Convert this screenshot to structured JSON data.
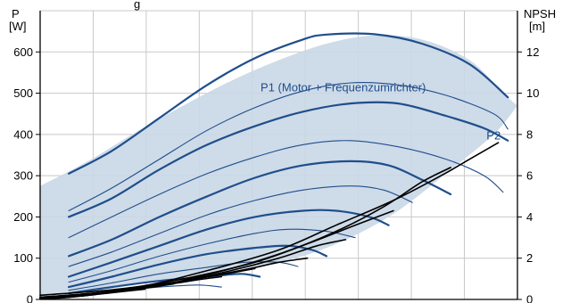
{
  "chart_data": {
    "type": "line",
    "title": "",
    "top_text": "g",
    "left_axis": {
      "label_line1": "P",
      "label_line2": "[W]",
      "ylim": [
        0,
        700
      ],
      "ticks": [
        {
          "v": 0,
          "t": "0"
        },
        {
          "v": 100,
          "t": "100"
        },
        {
          "v": 200,
          "t": "200"
        },
        {
          "v": 300,
          "t": "300"
        },
        {
          "v": 400,
          "t": "400"
        },
        {
          "v": 500,
          "t": "500"
        },
        {
          "v": 600,
          "t": "600"
        }
      ]
    },
    "right_axis": {
      "label_line1": "NPSH",
      "label_line2": "[m]",
      "ylim": [
        0,
        14
      ],
      "ticks": [
        {
          "v": 0,
          "t": "0"
        },
        {
          "v": 2,
          "t": "2"
        },
        {
          "v": 4,
          "t": "4"
        },
        {
          "v": 6,
          "t": "6"
        },
        {
          "v": 8,
          "t": "8"
        },
        {
          "v": 10,
          "t": "10"
        },
        {
          "v": 12,
          "t": "12"
        }
      ]
    },
    "x_grid_count": 9,
    "grid": true,
    "colors": {
      "band": "#c9d7e6",
      "power": "#1f4e8c",
      "npsh": "#000000",
      "grid": "#c8c8c8",
      "label": "#1f4e8c"
    },
    "annotations": [
      {
        "text": "P1 (Motor + Frequenzumrichter)",
        "x": 0.635,
        "y": 505
      },
      {
        "text": "P2",
        "x": 0.95,
        "y": 388
      }
    ],
    "band_upper": [
      [
        0,
        275
      ],
      [
        0.1,
        335
      ],
      [
        0.2,
        405
      ],
      [
        0.3,
        470
      ],
      [
        0.4,
        530
      ],
      [
        0.5,
        580
      ],
      [
        0.6,
        620
      ],
      [
        0.7,
        640
      ],
      [
        0.8,
        630
      ],
      [
        0.9,
        580
      ],
      [
        0.97,
        500
      ],
      [
        1.0,
        470
      ]
    ],
    "band_lower": [
      [
        1.0,
        470
      ],
      [
        0.95,
        400
      ],
      [
        0.85,
        305
      ],
      [
        0.75,
        215
      ],
      [
        0.65,
        150
      ],
      [
        0.55,
        105
      ],
      [
        0.45,
        80
      ],
      [
        0.35,
        62
      ],
      [
        0.25,
        45
      ],
      [
        0.15,
        30
      ],
      [
        0.08,
        18
      ],
      [
        0.04,
        0
      ],
      [
        0,
        0
      ]
    ],
    "series": [
      {
        "role": "power-max",
        "points": [
          [
            0.06,
            305
          ],
          [
            0.15,
            360
          ],
          [
            0.25,
            440
          ],
          [
            0.35,
            520
          ],
          [
            0.45,
            585
          ],
          [
            0.55,
            630
          ],
          [
            0.6,
            642
          ],
          [
            0.7,
            643
          ],
          [
            0.8,
            620
          ],
          [
            0.9,
            570
          ],
          [
            0.98,
            490
          ]
        ]
      },
      {
        "role": "power-thin",
        "points": [
          [
            0.06,
            215
          ],
          [
            0.15,
            270
          ],
          [
            0.25,
            340
          ],
          [
            0.35,
            410
          ],
          [
            0.45,
            465
          ],
          [
            0.55,
            505
          ],
          [
            0.65,
            525
          ],
          [
            0.75,
            520
          ],
          [
            0.85,
            495
          ],
          [
            0.95,
            450
          ],
          [
            0.98,
            413
          ]
        ]
      },
      {
        "role": "power-thick",
        "points": [
          [
            0.06,
            200
          ],
          [
            0.15,
            245
          ],
          [
            0.25,
            315
          ],
          [
            0.35,
            375
          ],
          [
            0.45,
            420
          ],
          [
            0.55,
            455
          ],
          [
            0.65,
            475
          ],
          [
            0.75,
            475
          ],
          [
            0.85,
            445
          ],
          [
            0.93,
            415
          ],
          [
            0.98,
            385
          ]
        ]
      },
      {
        "role": "power-thin",
        "points": [
          [
            0.06,
            150
          ],
          [
            0.15,
            200
          ],
          [
            0.25,
            255
          ],
          [
            0.35,
            305
          ],
          [
            0.45,
            345
          ],
          [
            0.55,
            375
          ],
          [
            0.65,
            385
          ],
          [
            0.75,
            370
          ],
          [
            0.85,
            340
          ],
          [
            0.93,
            300
          ],
          [
            0.97,
            260
          ]
        ]
      },
      {
        "role": "power-thick",
        "points": [
          [
            0.06,
            105
          ],
          [
            0.15,
            145
          ],
          [
            0.25,
            200
          ],
          [
            0.35,
            250
          ],
          [
            0.45,
            295
          ],
          [
            0.55,
            325
          ],
          [
            0.65,
            335
          ],
          [
            0.73,
            325
          ],
          [
            0.8,
            290
          ],
          [
            0.86,
            255
          ]
        ]
      },
      {
        "role": "power-thin",
        "points": [
          [
            0.06,
            80
          ],
          [
            0.15,
            115
          ],
          [
            0.25,
            160
          ],
          [
            0.35,
            205
          ],
          [
            0.45,
            240
          ],
          [
            0.55,
            265
          ],
          [
            0.65,
            275
          ],
          [
            0.72,
            265
          ],
          [
            0.78,
            235
          ]
        ]
      },
      {
        "role": "power-thick",
        "points": [
          [
            0.06,
            55
          ],
          [
            0.15,
            90
          ],
          [
            0.25,
            130
          ],
          [
            0.35,
            170
          ],
          [
            0.45,
            200
          ],
          [
            0.55,
            215
          ],
          [
            0.62,
            215
          ],
          [
            0.69,
            200
          ],
          [
            0.73,
            180
          ]
        ]
      },
      {
        "role": "power-thin",
        "points": [
          [
            0.06,
            42
          ],
          [
            0.15,
            70
          ],
          [
            0.25,
            105
          ],
          [
            0.35,
            135
          ],
          [
            0.45,
            160
          ],
          [
            0.52,
            170
          ],
          [
            0.6,
            165
          ],
          [
            0.66,
            150
          ]
        ]
      },
      {
        "role": "power-thick",
        "points": [
          [
            0.06,
            30
          ],
          [
            0.15,
            55
          ],
          [
            0.25,
            85
          ],
          [
            0.35,
            110
          ],
          [
            0.45,
            125
          ],
          [
            0.52,
            130
          ],
          [
            0.57,
            120
          ],
          [
            0.6,
            105
          ]
        ]
      },
      {
        "role": "power-thin",
        "points": [
          [
            0.06,
            22
          ],
          [
            0.15,
            40
          ],
          [
            0.25,
            62
          ],
          [
            0.35,
            78
          ],
          [
            0.43,
            90
          ],
          [
            0.5,
            90
          ],
          [
            0.54,
            80
          ]
        ]
      },
      {
        "role": "power-thick",
        "points": [
          [
            0.06,
            15
          ],
          [
            0.15,
            30
          ],
          [
            0.25,
            45
          ],
          [
            0.35,
            55
          ],
          [
            0.42,
            62
          ],
          [
            0.46,
            55
          ]
        ]
      },
      {
        "role": "power-thin",
        "points": [
          [
            0.06,
            10
          ],
          [
            0.15,
            20
          ],
          [
            0.25,
            30
          ],
          [
            0.33,
            35
          ],
          [
            0.38,
            30
          ]
        ]
      },
      {
        "role": "npsh",
        "points": [
          [
            0.0,
            0.2
          ],
          [
            0.2,
            0.6
          ],
          [
            0.35,
            1.4
          ],
          [
            0.5,
            2.4
          ],
          [
            0.62,
            3.6
          ],
          [
            0.74,
            4.8
          ],
          [
            0.84,
            6.0
          ],
          [
            0.9,
            6.8
          ],
          [
            0.96,
            7.6
          ]
        ]
      },
      {
        "role": "npsh",
        "points": [
          [
            0.0,
            0.1
          ],
          [
            0.2,
            0.5
          ],
          [
            0.35,
            1.2
          ],
          [
            0.5,
            2.2
          ],
          [
            0.62,
            3.3
          ],
          [
            0.72,
            4.5
          ],
          [
            0.8,
            5.7
          ],
          [
            0.86,
            6.4
          ]
        ]
      },
      {
        "role": "npsh",
        "points": [
          [
            0.0,
            0.1
          ],
          [
            0.15,
            0.4
          ],
          [
            0.3,
            1.0
          ],
          [
            0.45,
            1.8
          ],
          [
            0.56,
            2.7
          ],
          [
            0.66,
            3.6
          ],
          [
            0.74,
            4.3
          ]
        ]
      },
      {
        "role": "npsh",
        "points": [
          [
            0.0,
            0.1
          ],
          [
            0.15,
            0.35
          ],
          [
            0.28,
            0.8
          ],
          [
            0.4,
            1.4
          ],
          [
            0.5,
            2.0
          ],
          [
            0.58,
            2.6
          ],
          [
            0.64,
            2.9
          ]
        ]
      },
      {
        "role": "npsh",
        "points": [
          [
            0.0,
            0.05
          ],
          [
            0.12,
            0.3
          ],
          [
            0.25,
            0.7
          ],
          [
            0.35,
            1.1
          ],
          [
            0.44,
            1.5
          ],
          [
            0.5,
            1.8
          ],
          [
            0.56,
            2.0
          ]
        ]
      },
      {
        "role": "npsh",
        "points": [
          [
            0.0,
            0.05
          ],
          [
            0.1,
            0.25
          ],
          [
            0.2,
            0.55
          ],
          [
            0.3,
            0.9
          ],
          [
            0.38,
            1.2
          ],
          [
            0.45,
            1.5
          ]
        ]
      },
      {
        "role": "npsh",
        "points": [
          [
            0.0,
            0.05
          ],
          [
            0.1,
            0.2
          ],
          [
            0.18,
            0.45
          ],
          [
            0.26,
            0.7
          ],
          [
            0.33,
            0.95
          ],
          [
            0.38,
            1.1
          ]
        ]
      },
      {
        "role": "npsh",
        "points": [
          [
            0.0,
            0.02
          ],
          [
            0.08,
            0.15
          ],
          [
            0.15,
            0.35
          ],
          [
            0.22,
            0.55
          ],
          [
            0.28,
            0.75
          ]
        ]
      },
      {
        "role": "npsh",
        "points": [
          [
            0.0,
            0.02
          ],
          [
            0.06,
            0.1
          ],
          [
            0.12,
            0.25
          ],
          [
            0.18,
            0.4
          ],
          [
            0.22,
            0.5
          ]
        ]
      }
    ]
  }
}
